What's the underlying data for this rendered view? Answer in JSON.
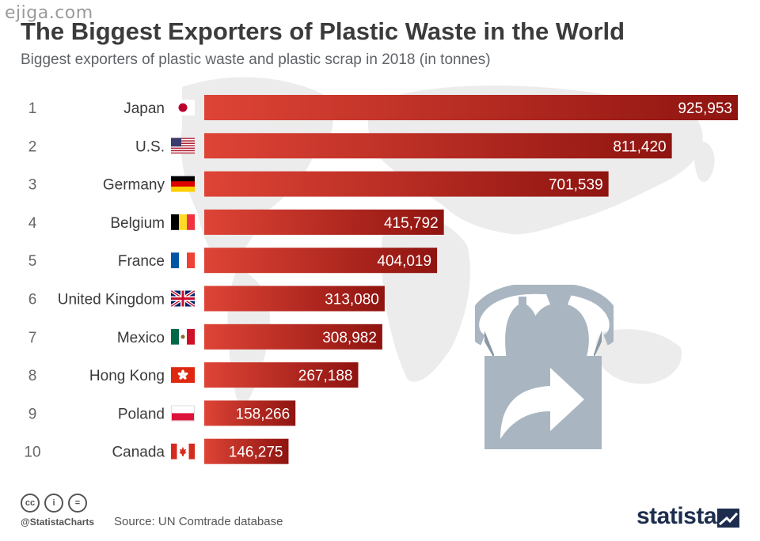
{
  "watermark": "ejiga.com",
  "title": "The Biggest Exporters of Plastic Waste in the World",
  "subtitle": "Biggest exporters of plastic waste and plastic scrap in 2018 (in tonnes)",
  "colors": {
    "bar_start": "#de4436",
    "bar_end": "#8f1410",
    "label_text": "#3a3a3a",
    "rank_text": "#666666",
    "value_text": "#ffffff",
    "map": "#ececec",
    "illustration": "#a9b6c1",
    "brand": "#1d2d4d"
  },
  "chart_data": {
    "type": "bar",
    "orientation": "horizontal",
    "title": "The Biggest Exporters of Plastic Waste in the World",
    "subtitle": "Biggest exporters of plastic waste and plastic scrap in 2018 (in tonnes)",
    "ranks": [
      "1",
      "2",
      "3",
      "4",
      "5",
      "6",
      "7",
      "8",
      "9",
      "10"
    ],
    "categories": [
      "Japan",
      "U.S.",
      "Germany",
      "Belgium",
      "France",
      "United Kingdom",
      "Mexico",
      "Hong Kong",
      "Poland",
      "Canada"
    ],
    "flags": [
      "japan-flag",
      "us-flag",
      "germany-flag",
      "belgium-flag",
      "france-flag",
      "uk-flag",
      "mexico-flag",
      "hong-kong-flag",
      "poland-flag",
      "canada-flag"
    ],
    "values": [
      925953,
      811420,
      701539,
      415792,
      404019,
      313080,
      308982,
      267188,
      158266,
      146275
    ],
    "value_labels": [
      "925,953",
      "811,420",
      "701,539",
      "415,792",
      "404,019",
      "313,080",
      "308,982",
      "267,188",
      "158,266",
      "146,275"
    ],
    "xlim": [
      0,
      925953
    ],
    "grid": false,
    "legend": "none"
  },
  "footer": {
    "cc_icons": [
      "cc-icon",
      "by-icon",
      "nd-icon"
    ],
    "cc_labels": [
      "cc",
      "i",
      "="
    ],
    "handle": "@StatistaCharts",
    "source": "Source: UN Comtrade database",
    "brand": "statista"
  }
}
